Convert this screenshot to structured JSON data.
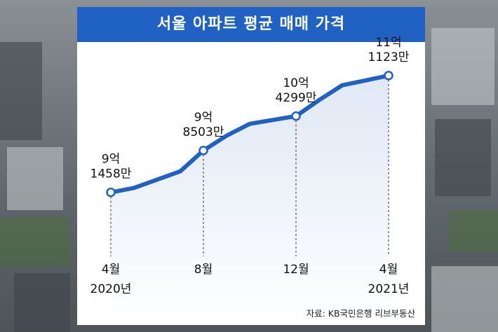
{
  "chart_data": {
    "type": "line",
    "title": "서울 아파트 평균 매매 가격",
    "unit": "원",
    "series": [
      {
        "color": "#1f62c4",
        "values": [
          914580000,
          922000000,
          950000000,
          985030000,
          1010000000,
          1030000000,
          1042990000,
          1070000000,
          1095000000,
          1111230000
        ]
      }
    ],
    "x": [
      "2020-04",
      "2020-05",
      "2020-07",
      "2020-08",
      "2020-09",
      "2020-10",
      "2020-12",
      "2021-01",
      "2021-02",
      "2021-04"
    ],
    "labeled_points": [
      {
        "index": 0,
        "value_label": [
          "9억",
          "1458만"
        ],
        "x_label": [
          "4월",
          "2020년"
        ]
      },
      {
        "index": 3,
        "value_label": [
          "9억",
          "8503만"
        ],
        "x_label": [
          "8월"
        ]
      },
      {
        "index": 6,
        "value_label": [
          "10억",
          "4299만"
        ],
        "x_label": [
          "12월"
        ]
      },
      {
        "index": 9,
        "value_label": [
          "11억",
          "1123만"
        ],
        "x_label": [
          "4월",
          "2021년"
        ]
      }
    ],
    "source": "자료: KB국민은행 리브부동산"
  },
  "colors": {
    "accent": "#1f62c4",
    "fill": "#e6edf7"
  }
}
